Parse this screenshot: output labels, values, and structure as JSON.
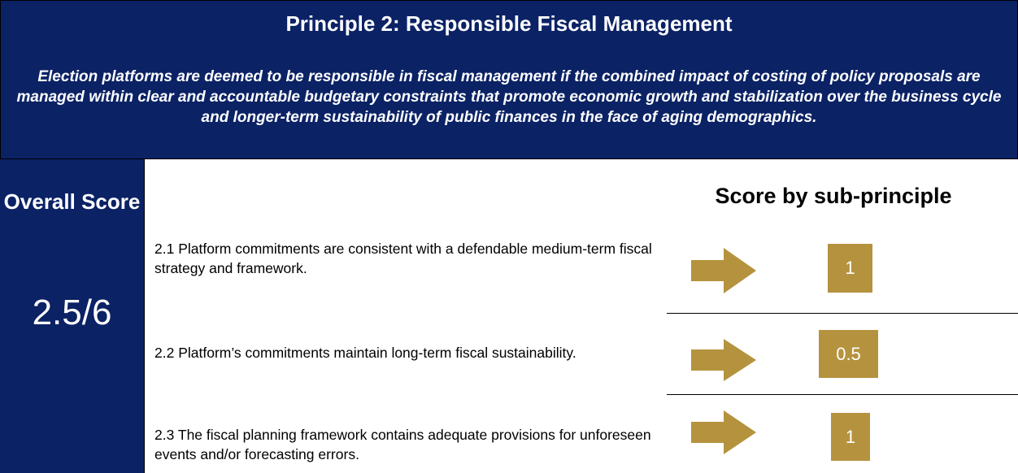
{
  "header": {
    "title": "Principle 2: Responsible Fiscal Management",
    "description": "Election platforms are deemed to be responsible in fiscal management if the combined impact of costing of policy proposals are managed within clear and accountable budgetary constraints that promote economic growth and stabilization over the business cycle and longer-term sustainability of public finances in the face of aging demographics."
  },
  "overall": {
    "label": "Overall Score",
    "score": "2.5/6"
  },
  "sub_principles": {
    "heading": "Score by sub-principle",
    "items": [
      {
        "text": "2.1 Platform commitments are consistent with a defendable medium-term fiscal strategy and framework.",
        "score": 1
      },
      {
        "text": "2.2 Platform’s commitments maintain long-term fiscal sustainability.",
        "score": 0.5
      },
      {
        "text": "2.3 The fiscal planning framework contains adequate provisions for unforeseen events and/or forecasting errors.",
        "score": 1
      }
    ]
  }
}
